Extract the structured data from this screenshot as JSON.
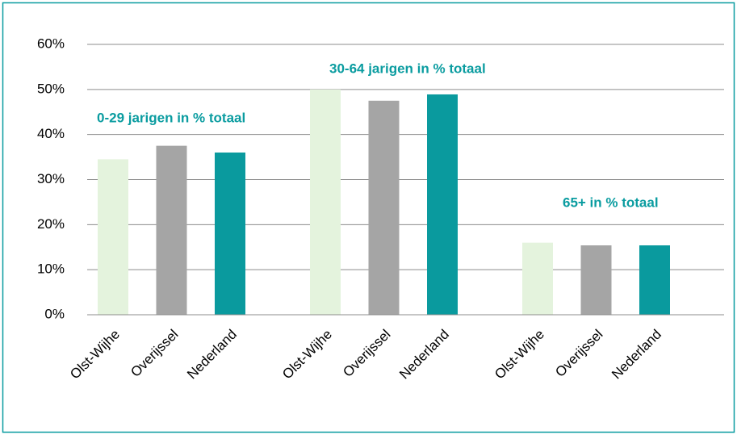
{
  "chart_data": {
    "type": "bar",
    "group_labels": [
      "0-29 jarigen in % totaal",
      "30-64 jarigen in % totaal",
      "65+ in % totaal"
    ],
    "series": [
      {
        "name": "Olst-Wijhe",
        "color": "#e4f3dd",
        "values": [
          34.5,
          50.0,
          16.0
        ]
      },
      {
        "name": "Overijssel",
        "color": "#a5a5a5",
        "values": [
          37.5,
          47.5,
          15.4
        ]
      },
      {
        "name": "Nederland",
        "color": "#0a9a9e",
        "values": [
          36.0,
          48.9,
          15.4
        ]
      }
    ],
    "ylim": [
      0,
      60
    ],
    "yticks": [
      {
        "value": 0,
        "label": "0%"
      },
      {
        "value": 10,
        "label": "10%"
      },
      {
        "value": 20,
        "label": "20%"
      },
      {
        "value": 30,
        "label": "30%"
      },
      {
        "value": 40,
        "label": "40%"
      },
      {
        "value": 50,
        "label": "50%"
      },
      {
        "value": 60,
        "label": "60%"
      }
    ],
    "grid": true
  }
}
